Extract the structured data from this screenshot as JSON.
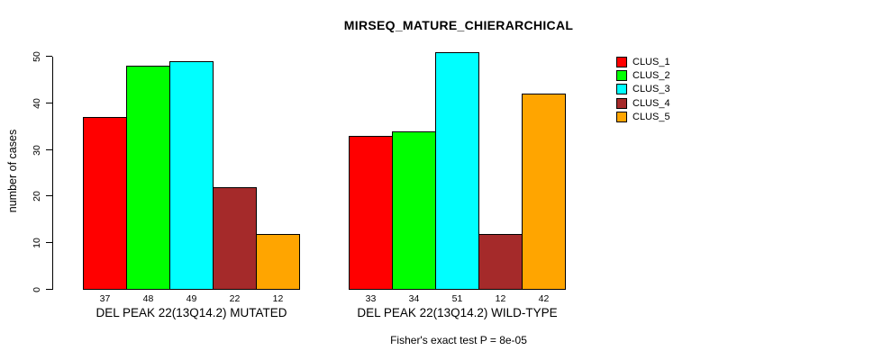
{
  "title": "MIRSEQ_MATURE_CHIERARCHICAL",
  "subtitle": "Fisher's exact test P = 8e-05",
  "y_axis": {
    "label": "number of cases",
    "ticks": [
      0,
      10,
      20,
      30,
      40,
      50
    ]
  },
  "legend": {
    "position": "right",
    "items": [
      {
        "label": "CLUS_1",
        "color": "#FF0000"
      },
      {
        "label": "CLUS_2",
        "color": "#00FF00"
      },
      {
        "label": "CLUS_3",
        "color": "#00FFFF"
      },
      {
        "label": "CLUS_4",
        "color": "#A52A2A"
      },
      {
        "label": "CLUS_5",
        "color": "#FFA500"
      }
    ]
  },
  "chart_data": {
    "type": "bar",
    "title": "MIRSEQ_MATURE_CHIERARCHICAL",
    "xlabel": "",
    "ylabel": "number of cases",
    "ylim": [
      0,
      50
    ],
    "grid": false,
    "legend_position": "right",
    "categories": [
      "DEL PEAK 22(13Q14.2) MUTATED",
      "DEL PEAK 22(13Q14.2) WILD-TYPE"
    ],
    "series": [
      {
        "name": "CLUS_1",
        "color": "#FF0000",
        "values": [
          37,
          33
        ]
      },
      {
        "name": "CLUS_2",
        "color": "#00FF00",
        "values": [
          48,
          34
        ]
      },
      {
        "name": "CLUS_3",
        "color": "#00FFFF",
        "values": [
          49,
          51
        ]
      },
      {
        "name": "CLUS_4",
        "color": "#A52A2A",
        "values": [
          22,
          12
        ]
      },
      {
        "name": "CLUS_5",
        "color": "#FFA500",
        "values": [
          12,
          42
        ]
      }
    ],
    "bar_value_labels": [
      [
        37,
        48,
        49,
        22,
        12
      ],
      [
        33,
        34,
        51,
        12,
        42
      ]
    ],
    "annotation": "Fisher's exact test P = 8e-05"
  }
}
